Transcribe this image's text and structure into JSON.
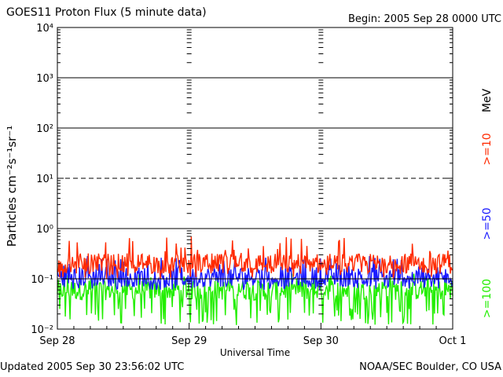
{
  "header": {
    "title": "GOES11 Proton Flux (5 minute data)",
    "begin": "Begin: 2005 Sep 28 0000 UTC"
  },
  "footer": {
    "updated": "Updated 2005 Sep 30 23:56:02 UTC",
    "credit": "NOAA/SEC Boulder, CO USA"
  },
  "chart_data": {
    "type": "line",
    "title": "GOES11 Proton Flux (5 minute data)",
    "xlabel": "Universal Time",
    "ylabel": "Particles cm⁻²s⁻¹sr⁻¹",
    "yscale": "log",
    "ylim": [
      0.01,
      10000
    ],
    "xlim": [
      "2005-09-28",
      "2005-10-01"
    ],
    "x_ticks": [
      "Sep 28",
      "Sep 29",
      "Sep 30",
      "Oct 1"
    ],
    "y_ticks": [
      {
        "value": 0.01,
        "label": "10⁻²"
      },
      {
        "value": 0.1,
        "label": "10⁻¹"
      },
      {
        "value": 1,
        "label": "10⁰"
      },
      {
        "value": 10,
        "label": "10¹"
      },
      {
        "value": 100,
        "label": "10²"
      },
      {
        "value": 1000,
        "label": "10³"
      },
      {
        "value": 10000,
        "label": "10⁴"
      }
    ],
    "reference_lines": [
      {
        "value": 0.1,
        "style": "solid"
      },
      {
        "value": 1,
        "style": "solid"
      },
      {
        "value": 10,
        "style": "dashed"
      },
      {
        "value": 100,
        "style": "solid"
      },
      {
        "value": 1000,
        "style": "solid"
      }
    ],
    "unit_label": "MeV",
    "series": [
      {
        "name": ">=10",
        "color": "#ff2a00",
        "values_range": [
          0.1,
          0.7
        ],
        "typical": 0.2
      },
      {
        "name": ">=50",
        "color": "#1a1aff",
        "values_range": [
          0.06,
          0.3
        ],
        "typical": 0.11
      },
      {
        "name": ">=100",
        "color": "#22ee00",
        "values_range": [
          0.012,
          0.13
        ],
        "typical": 0.06
      }
    ]
  }
}
